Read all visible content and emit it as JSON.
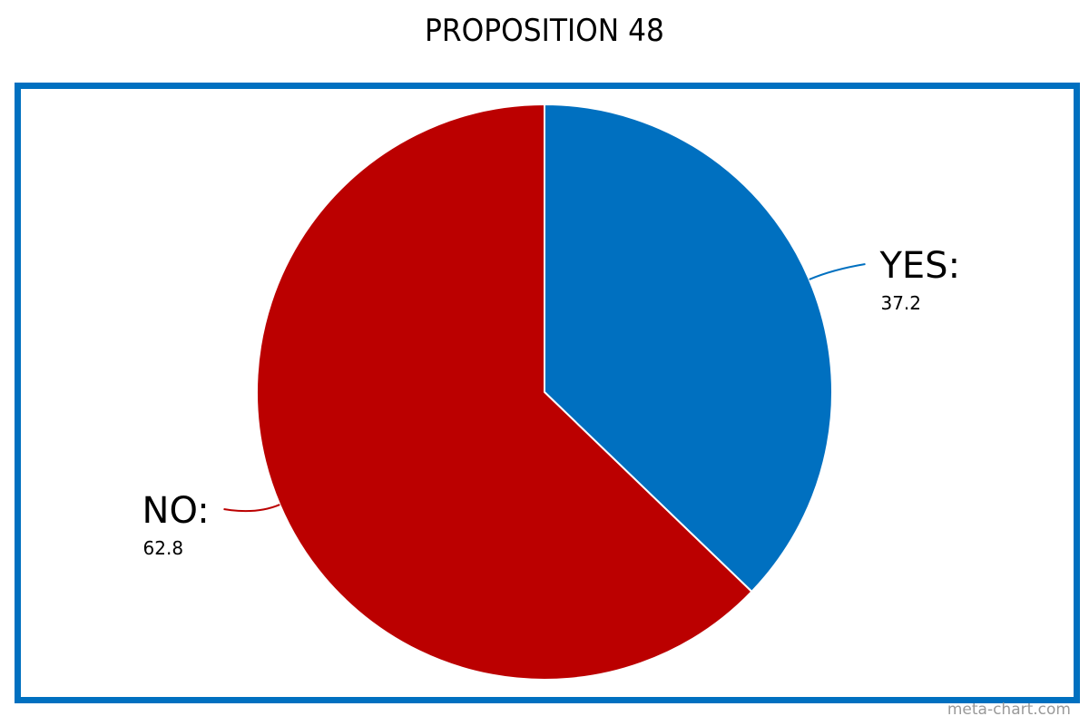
{
  "chart_data": {
    "type": "pie",
    "title": "PROPOSITION 48",
    "slices": [
      {
        "label": "YES:",
        "value": 37.2,
        "value_text": "37.2",
        "color": "#0070c0"
      },
      {
        "label": "NO:",
        "value": 62.8,
        "value_text": "62.8",
        "color": "#bb0000"
      }
    ],
    "start": "12 o'clock",
    "direction": "clockwise",
    "legend": "none",
    "frame_color": "#0070c0"
  },
  "watermark": "meta-chart.com"
}
